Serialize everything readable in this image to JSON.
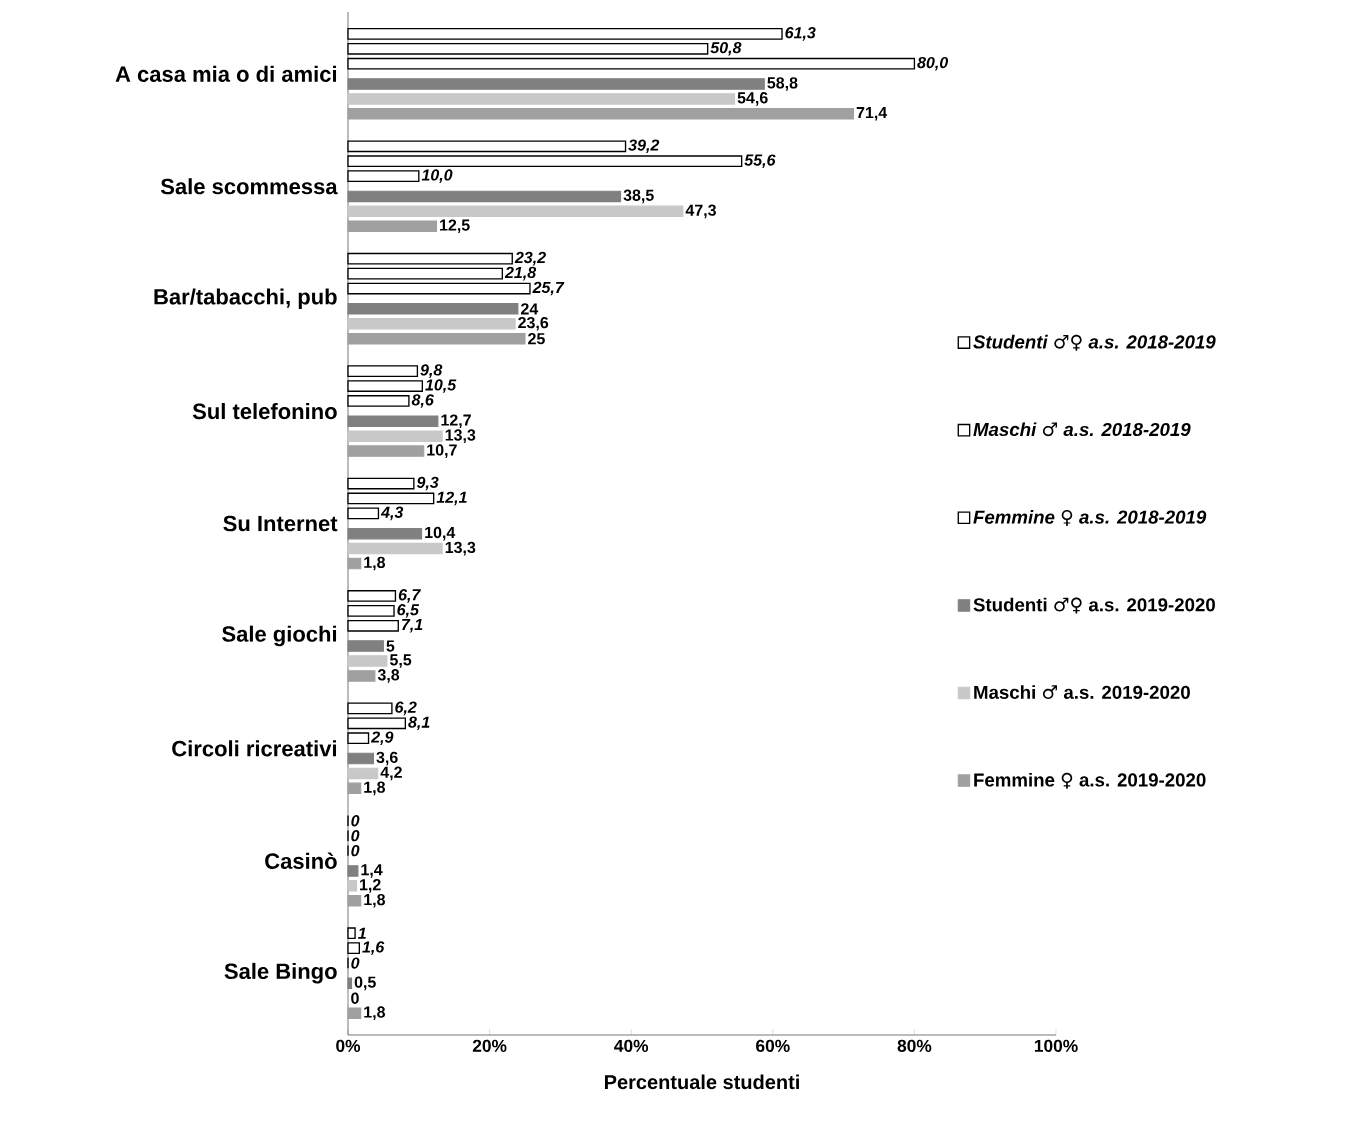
{
  "chart_data": {
    "type": "bar",
    "orientation": "horizontal",
    "xlabel": "Percentuale studenti",
    "legend": "right",
    "categories": [
      "A casa mia o di amici",
      "Sale scommessa",
      "Bar/tabacchi, pub",
      "Sul telefonino",
      "Su Internet",
      "Sale giochi",
      "Circoli ricreativi",
      "Casinò",
      "Sale Bingo"
    ],
    "xlim": [
      0,
      100
    ],
    "xticks": [
      {
        "value": 0,
        "label": "0%"
      },
      {
        "value": 20,
        "label": "20%"
      },
      {
        "value": 40,
        "label": "40%"
      },
      {
        "value": 60,
        "label": "60%"
      },
      {
        "value": 80,
        "label": "80%"
      },
      {
        "value": 100,
        "label": "100%"
      }
    ],
    "series": [
      {
        "name": "Studenti ♂♀ a.s. 2018-2019",
        "color": "#000000",
        "values": [
          61.3,
          39.2,
          23.2,
          9.8,
          9.3,
          6.7,
          6.2,
          0,
          1
        ],
        "value_labels": [
          "61,3",
          "39,2",
          "23,2",
          "9,8",
          "9,3",
          "6,7",
          "6,2",
          "0",
          "1"
        ]
      },
      {
        "name": "Maschi ♂ a.s. 2018-2019",
        "color": "#000000",
        "values": [
          50.8,
          55.6,
          21.8,
          10.5,
          12.1,
          6.5,
          8.1,
          0,
          1.6
        ],
        "value_labels": [
          "50,8",
          "55,6",
          "21,8",
          "10,5",
          "12,1",
          "6,5",
          "8,1",
          "0",
          "1,6"
        ]
      },
      {
        "name": "Femmine ♀ a.s. 2018-2019",
        "color": "#000000",
        "values": [
          80.0,
          10.0,
          25.7,
          8.6,
          4.3,
          7.1,
          2.9,
          0,
          0
        ],
        "value_labels": [
          "80,0",
          "10,0",
          "25,7",
          "8,6",
          "4,3",
          "7,1",
          "2,9",
          "0",
          "0"
        ]
      },
      {
        "name": "Studenti ♂♀ a.s. 2019-2020",
        "color": "#808080",
        "values": [
          58.8,
          38.5,
          24,
          12.7,
          10.4,
          5,
          3.6,
          1.4,
          0.5
        ],
        "value_labels": [
          "58,8",
          "38,5",
          "24",
          "12,7",
          "10,4",
          "5",
          "3,6",
          "1,4",
          "0,5"
        ]
      },
      {
        "name": "Maschi ♂ a.s. 2019-2020",
        "color": "#c8c8c8",
        "values": [
          54.6,
          47.3,
          23.6,
          13.3,
          13.3,
          5.5,
          4.2,
          1.2,
          0
        ],
        "value_labels": [
          "54,6",
          "47,3",
          "23,6",
          "13,3",
          "13,3",
          "5,5",
          "4,2",
          "1,2",
          "0"
        ]
      },
      {
        "name": "Femmine ♀ a.s. 2019-2020",
        "color": "#a0a0a0",
        "values": [
          71.4,
          12.5,
          25,
          10.7,
          1.8,
          3.8,
          1.8,
          1.8,
          1.8
        ],
        "value_labels": [
          "71,4",
          "12,5",
          "25",
          "10,7",
          "1,8",
          "3,8",
          "1,8",
          "1,8",
          "1,8"
        ]
      }
    ]
  }
}
